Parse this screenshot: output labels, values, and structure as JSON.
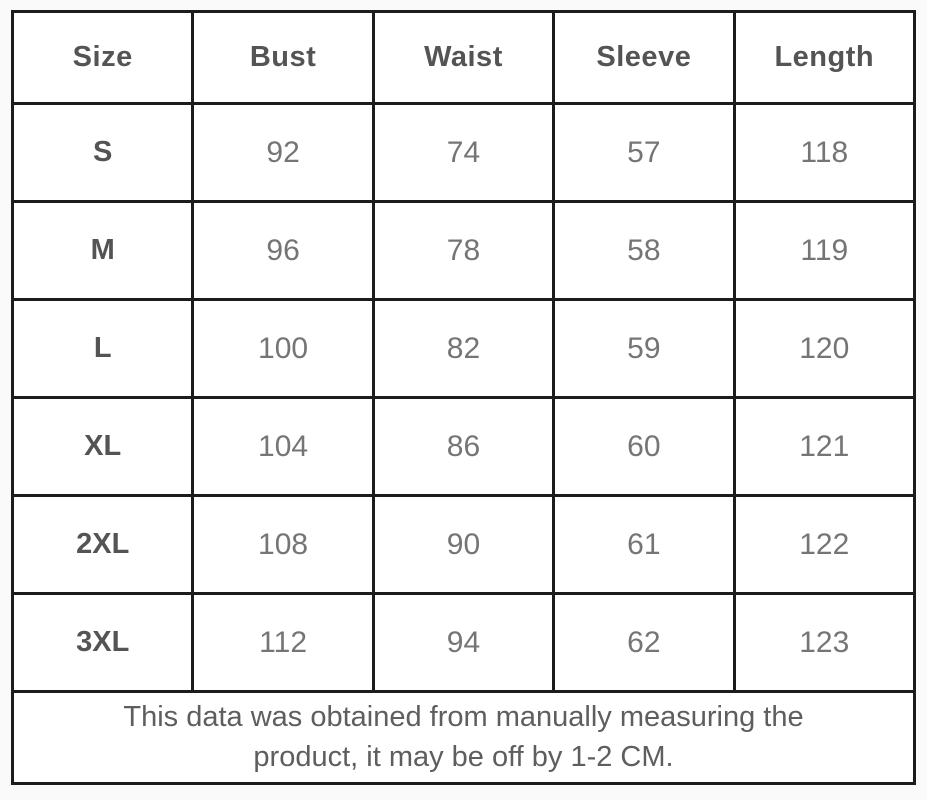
{
  "size_chart": {
    "columns": [
      "Size",
      "Bust",
      "Waist",
      "Sleeve",
      "Length"
    ],
    "rows": [
      {
        "size": "S",
        "values": [
          "92",
          "74",
          "57",
          "118"
        ]
      },
      {
        "size": "M",
        "values": [
          "96",
          "78",
          "58",
          "119"
        ]
      },
      {
        "size": "L",
        "values": [
          "100",
          "82",
          "59",
          "120"
        ]
      },
      {
        "size": "XL",
        "values": [
          "104",
          "86",
          "60",
          "121"
        ]
      },
      {
        "size": "2XL",
        "values": [
          "108",
          "90",
          "61",
          "122"
        ]
      },
      {
        "size": "3XL",
        "values": [
          "112",
          "94",
          "62",
          "123"
        ]
      }
    ],
    "footer_note": "This data was obtained from manually measuring the product, it may be off by 1-2 CM."
  },
  "colors": {
    "border": "#1c1c1c",
    "header_text": "#545454",
    "value_text": "#757575",
    "footer_text": "#5e5e5e",
    "cell_background": "#ffffff",
    "page_background": "#fafafa"
  },
  "chart_data": {
    "type": "table",
    "columns": [
      "Size",
      "Bust",
      "Waist",
      "Sleeve",
      "Length"
    ],
    "rows": [
      [
        "S",
        92,
        74,
        57,
        118
      ],
      [
        "M",
        96,
        78,
        58,
        119
      ],
      [
        "L",
        100,
        82,
        59,
        120
      ],
      [
        "XL",
        104,
        86,
        60,
        121
      ],
      [
        "2XL",
        108,
        90,
        61,
        122
      ],
      [
        "3XL",
        112,
        94,
        62,
        123
      ]
    ],
    "footnote": "This data was obtained from manually measuring the product, it may be off by 1-2 CM.",
    "layout_hints": {
      "grid": "on",
      "units": "CM",
      "footer_spans_all_columns": true
    }
  }
}
